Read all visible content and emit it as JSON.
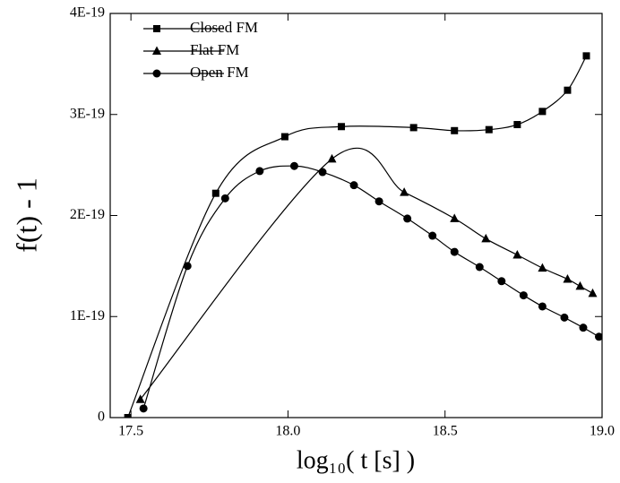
{
  "chart_data": {
    "type": "line",
    "x_label": "log₁₀( t [s] )",
    "y_label": "f(t) - 1",
    "xlim": [
      17.434,
      19.0
    ],
    "xticks": [
      17.5,
      {
        "value": 18.0,
        "label": "18.0"
      },
      18.5,
      {
        "value": 19.0,
        "label": "19.0"
      }
    ],
    "ylim": [
      0,
      4e-19
    ],
    "yticks": [
      0,
      {
        "value": 1e-19,
        "label": "1E-19"
      },
      {
        "value": 2e-19,
        "label": "2E-19"
      },
      {
        "value": 3e-19,
        "label": "3E-19"
      },
      {
        "value": 4e-19,
        "label": "4E-19"
      }
    ],
    "legend": "upper left",
    "series": [
      {
        "name": "Closed FM",
        "color": "#000000",
        "marker": "square",
        "x": [
          17.49,
          17.77,
          17.99,
          18.17,
          18.4,
          18.53,
          18.64,
          18.73,
          18.81,
          18.89,
          18.95
        ],
        "values": [
          0,
          2.22e-19,
          2.78e-19,
          2.88e-19,
          2.87e-19,
          2.84e-19,
          2.85e-19,
          2.9e-19,
          3.03e-19,
          3.24e-19,
          3.58e-19
        ]
      },
      {
        "name": "Flat FM",
        "color": "#000000",
        "marker": "triangle",
        "x": [
          17.53,
          18.14,
          18.37,
          18.53,
          18.63,
          18.73,
          18.81,
          18.89,
          18.93,
          18.97
        ],
        "values": [
          1.8e-20,
          2.56e-19,
          2.23e-19,
          1.97e-19,
          1.77e-19,
          1.61e-19,
          1.48e-19,
          1.37e-19,
          1.3e-19,
          1.23e-19
        ]
      },
      {
        "name": "Open FM",
        "color": "#000000",
        "marker": "circle",
        "x": [
          17.54,
          17.68,
          17.8,
          17.91,
          18.02,
          18.11,
          18.21,
          18.29,
          18.38,
          18.46,
          18.53,
          18.61,
          18.68,
          18.75,
          18.81,
          18.88,
          18.94,
          18.99
        ],
        "values": [
          9e-21,
          1.5e-19,
          2.17e-19,
          2.44e-19,
          2.49e-19,
          2.43e-19,
          2.3e-19,
          2.14e-19,
          1.97e-19,
          1.8e-19,
          1.64e-19,
          1.49e-19,
          1.35e-19,
          1.21e-19,
          1.1e-19,
          9.9e-20,
          8.9e-20,
          8e-20
        ]
      }
    ]
  }
}
